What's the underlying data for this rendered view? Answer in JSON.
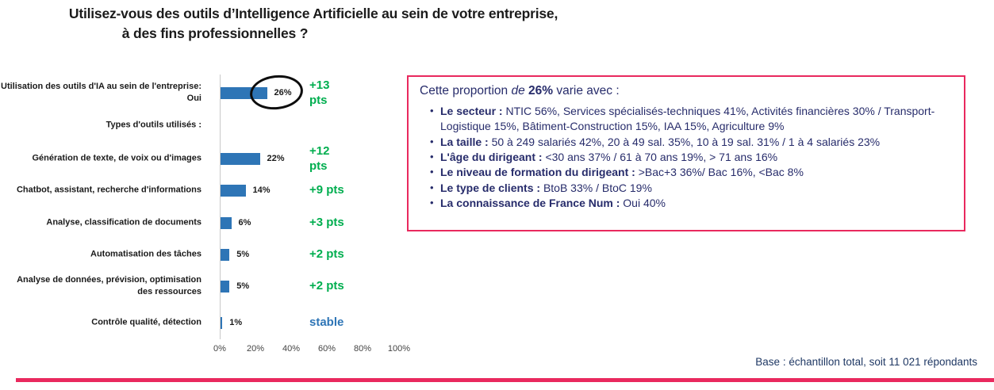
{
  "title": {
    "line1": "Utilisez-vous des outils d’Intelligence Artificielle au sein de votre entreprise,",
    "line2": "à des fins professionnelles ?"
  },
  "chart_data": {
    "type": "bar",
    "orientation": "horizontal",
    "title": "",
    "xlabel": "",
    "ylabel": "",
    "xlim": [
      0,
      100
    ],
    "x_ticks": [
      "0%",
      "20%",
      "40%",
      "60%",
      "80%",
      "100%"
    ],
    "grid": false,
    "bar_color": "#2E75B6",
    "categories": [
      "Utilisation des outils d'IA au sein de l'entreprise: Oui",
      "Types d'outils utilisés :",
      "Génération de texte, de voix ou d'images",
      "Chatbot, assistant, recherche d'informations",
      "Analyse, classification de documents",
      "Automatisation des tâches",
      "Analyse de données, prévision, optimisation des ressources",
      "Contrôle qualité, détection"
    ],
    "values": [
      26,
      null,
      22,
      14,
      6,
      5,
      5,
      1
    ],
    "value_labels": [
      "26%",
      "",
      "22%",
      "14%",
      "6%",
      "5%",
      "5%",
      "1%"
    ],
    "deltas": [
      "+13 pts",
      "",
      "+12 pts",
      "+9 pts",
      "+3 pts",
      "+2 pts",
      "+2 pts",
      "stable"
    ],
    "deltas_display": [
      "+13\npts",
      "",
      "+12\npts",
      "+9 pts",
      "+3 pts",
      "+2 pts",
      "+2 pts",
      "stable"
    ],
    "annotation": "26% circled with black ellipse"
  },
  "info_box": {
    "header": {
      "pre": "Cette proportion",
      "italic": "de",
      "bold": "26%",
      "post": "varie avec :"
    },
    "bullet_icon": "•",
    "bullets": [
      {
        "lead": "Le secteur :",
        "text": "NTIC 56%, Services spécialisés-techniques 41%, Activités financières 30% / Transport-Logistique 15%, Bâtiment-Construction 15%, IAA 15%, Agriculture 9%"
      },
      {
        "lead": "La taille :",
        "text": "50 à 249 salariés 42%, 20 à 49 sal. 35%, 10 à 19 sal. 31% / 1 à 4 salariés 23%"
      },
      {
        "lead": "L'âge du dirigeant :",
        "text": "<30 ans 37% /  61 à 70 ans 19%, > 71 ans 16%"
      },
      {
        "lead": "Le niveau de formation du dirigeant :",
        "text": ">Bac+3 36%/ Bac 16%, <Bac 8%"
      },
      {
        "lead": "Le type de clients :",
        "text": "BtoB 33% / BtoC 19%"
      },
      {
        "lead": "La connaissance de France Num :",
        "text": "Oui 40%"
      }
    ]
  },
  "footer": {
    "text": "Base : échantillon total, soit  11 021 répondants"
  },
  "colors": {
    "bar_blue": "#2E75B6",
    "delta_green": "#00AE4F",
    "stable_blue": "#2E75B6",
    "box_navy": "#272C6B",
    "accent_pink": "#E9295E",
    "footer_navy": "#1F3864"
  }
}
